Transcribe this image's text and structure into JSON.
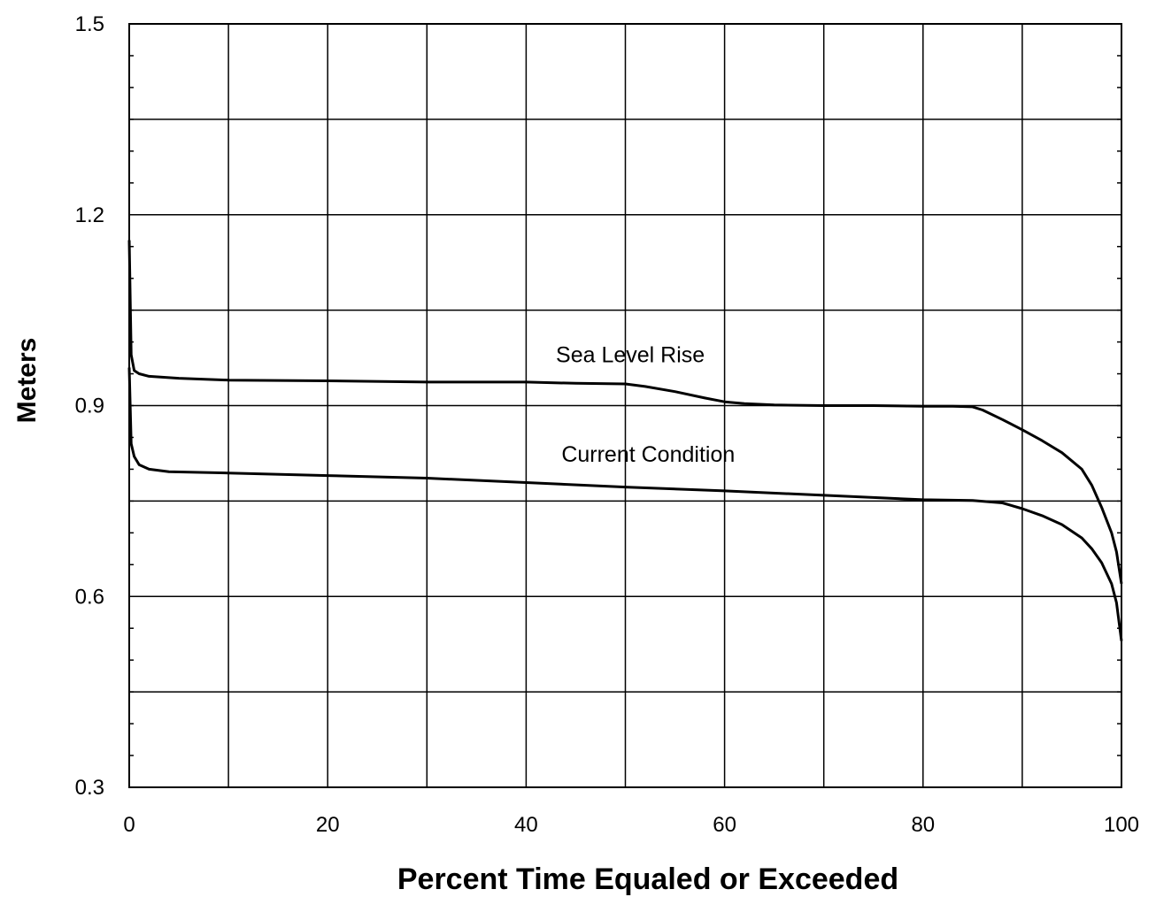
{
  "chart_data": {
    "type": "line",
    "title": "",
    "xlabel": "Percent Time Equaled or Exceeded",
    "ylabel": "Meters",
    "xlim": [
      0,
      100
    ],
    "ylim": [
      0.3,
      1.5
    ],
    "xticks": [
      0,
      20,
      40,
      60,
      80,
      100
    ],
    "xtick_labels": [
      "0",
      "20",
      "40",
      "60",
      "80",
      "100"
    ],
    "yticks": [
      0.3,
      0.6,
      0.9,
      1.2,
      1.5
    ],
    "ytick_labels": [
      "0.3",
      "0.6",
      "0.9",
      "1.2",
      "1.5"
    ],
    "grid": true,
    "series": [
      {
        "name": "Sea Level Rise",
        "x": [
          0,
          0.2,
          0.5,
          1,
          2,
          5,
          10,
          20,
          30,
          40,
          45,
          50,
          52,
          55,
          58,
          60,
          62,
          65,
          70,
          75,
          80,
          83,
          85,
          86,
          88,
          90,
          92,
          94,
          96,
          97,
          98,
          99,
          99.5,
          100
        ],
        "y": [
          1.16,
          0.98,
          0.955,
          0.95,
          0.946,
          0.943,
          0.94,
          0.939,
          0.937,
          0.937,
          0.935,
          0.934,
          0.93,
          0.922,
          0.912,
          0.906,
          0.903,
          0.901,
          0.9,
          0.9,
          0.899,
          0.899,
          0.898,
          0.893,
          0.878,
          0.862,
          0.845,
          0.826,
          0.8,
          0.775,
          0.74,
          0.7,
          0.67,
          0.62
        ]
      },
      {
        "name": "Current Condition",
        "x": [
          0,
          0.2,
          0.5,
          1,
          2,
          4,
          10,
          20,
          30,
          40,
          50,
          60,
          70,
          80,
          85,
          88,
          90,
          92,
          94,
          96,
          97,
          98,
          99,
          99.5,
          100
        ],
        "y": [
          0.96,
          0.84,
          0.82,
          0.807,
          0.8,
          0.796,
          0.794,
          0.79,
          0.786,
          0.779,
          0.772,
          0.766,
          0.759,
          0.752,
          0.751,
          0.747,
          0.738,
          0.727,
          0.713,
          0.692,
          0.675,
          0.653,
          0.62,
          0.59,
          0.53
        ]
      }
    ],
    "annotations": [
      {
        "text": "Sea Level Rise",
        "x": 50.5,
        "y": 0.968
      },
      {
        "text": "Current Condition",
        "x": 52.3,
        "y": 0.812
      }
    ]
  }
}
